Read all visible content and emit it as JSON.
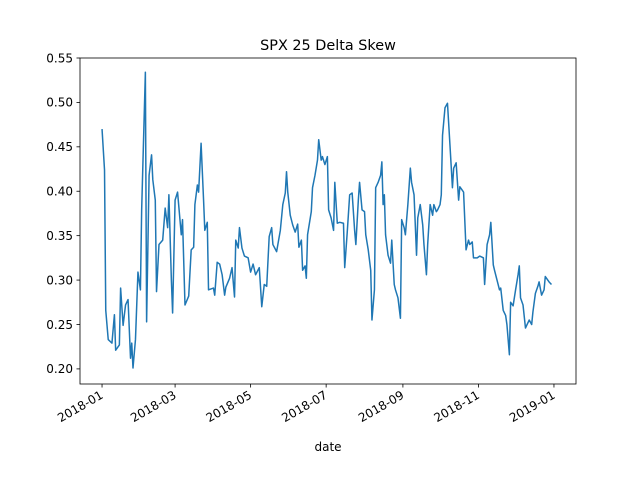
{
  "chart_data": {
    "type": "line",
    "title": "SPX 25 Delta Skew",
    "x_label": "date",
    "x": [
      0,
      2,
      3,
      5,
      8,
      10,
      11,
      14,
      15,
      17,
      19,
      21,
      23,
      24,
      25,
      27,
      29,
      31,
      32,
      35,
      36,
      38,
      40,
      41,
      43,
      44,
      46,
      49,
      51,
      53,
      54,
      56,
      57,
      59,
      61,
      64,
      65,
      67,
      70,
      72,
      74,
      75,
      77,
      78,
      80,
      82,
      83,
      85,
      86,
      90,
      91,
      93,
      95,
      97,
      99,
      100,
      103,
      105,
      107,
      108,
      110,
      111,
      113,
      115,
      118,
      120,
      122,
      124,
      127,
      129,
      131,
      133,
      135,
      137,
      138,
      141,
      142,
      144,
      146,
      148,
      149,
      150,
      152,
      154,
      156,
      158,
      159,
      161,
      162,
      164,
      165,
      166,
      169,
      170,
      172,
      174,
      175,
      177,
      178,
      180,
      182,
      183,
      185,
      187,
      188,
      190,
      192,
      195,
      196,
      198,
      200,
      202,
      204,
      205,
      207,
      208,
      210,
      212,
      213,
      215,
      217,
      218,
      220,
      221,
      223,
      225,
      226,
      227,
      228,
      229,
      231,
      233,
      234,
      236,
      237,
      239,
      241,
      242,
      244,
      245,
      247,
      249,
      250,
      252,
      254,
      255,
      257,
      259,
      260,
      262,
      263,
      265,
      267,
      268,
      270,
      271,
      273,
      274,
      275,
      277,
      279,
      281,
      283,
      284,
      286,
      288,
      289,
      291,
      292,
      294,
      296,
      297,
      299,
      300,
      303,
      305,
      308,
      309,
      311,
      313,
      314,
      316,
      317,
      319,
      321,
      322,
      324,
      326,
      327,
      329,
      330,
      332,
      334,
      336,
      337,
      338,
      340,
      342,
      343,
      345,
      347,
      348,
      350,
      352,
      353,
      355,
      357,
      358,
      360,
      361,
      363
    ],
    "values": [
      0.47,
      0.424,
      0.266,
      0.233,
      0.229,
      0.261,
      0.221,
      0.227,
      0.291,
      0.249,
      0.272,
      0.278,
      0.212,
      0.229,
      0.201,
      0.233,
      0.309,
      0.289,
      0.379,
      0.534,
      0.253,
      0.418,
      0.441,
      0.413,
      0.39,
      0.287,
      0.34,
      0.345,
      0.381,
      0.359,
      0.396,
      0.3,
      0.263,
      0.39,
      0.399,
      0.351,
      0.368,
      0.272,
      0.282,
      0.334,
      0.337,
      0.385,
      0.407,
      0.399,
      0.454,
      0.39,
      0.356,
      0.365,
      0.289,
      0.291,
      0.283,
      0.32,
      0.318,
      0.306,
      0.283,
      0.292,
      0.302,
      0.314,
      0.281,
      0.345,
      0.336,
      0.359,
      0.336,
      0.327,
      0.325,
      0.309,
      0.318,
      0.306,
      0.314,
      0.27,
      0.295,
      0.293,
      0.349,
      0.359,
      0.34,
      0.332,
      0.34,
      0.356,
      0.385,
      0.398,
      0.422,
      0.399,
      0.373,
      0.362,
      0.354,
      0.363,
      0.337,
      0.345,
      0.311,
      0.316,
      0.302,
      0.351,
      0.377,
      0.404,
      0.418,
      0.435,
      0.458,
      0.435,
      0.439,
      0.43,
      0.439,
      0.379,
      0.37,
      0.356,
      0.41,
      0.364,
      0.365,
      0.364,
      0.314,
      0.353,
      0.396,
      0.398,
      0.356,
      0.34,
      0.39,
      0.41,
      0.379,
      0.377,
      0.351,
      0.334,
      0.311,
      0.255,
      0.289,
      0.404,
      0.41,
      0.418,
      0.433,
      0.385,
      0.396,
      0.351,
      0.328,
      0.319,
      0.345,
      0.295,
      0.289,
      0.28,
      0.257,
      0.368,
      0.359,
      0.351,
      0.385,
      0.426,
      0.41,
      0.396,
      0.328,
      0.37,
      0.385,
      0.362,
      0.34,
      0.306,
      0.34,
      0.385,
      0.373,
      0.385,
      0.377,
      0.379,
      0.385,
      0.396,
      0.463,
      0.494,
      0.499,
      0.452,
      0.404,
      0.426,
      0.432,
      0.39,
      0.405,
      0.401,
      0.399,
      0.334,
      0.345,
      0.34,
      0.343,
      0.325,
      0.325,
      0.327,
      0.325,
      0.295,
      0.34,
      0.351,
      0.365,
      0.317,
      0.311,
      0.3,
      0.289,
      0.291,
      0.266,
      0.26,
      0.25,
      0.216,
      0.275,
      0.271,
      0.289,
      0.306,
      0.316,
      0.28,
      0.272,
      0.246,
      0.249,
      0.255,
      0.25,
      0.264,
      0.285,
      0.293,
      0.298,
      0.283,
      0.289,
      0.304,
      0.3,
      0.298,
      0.295
    ],
    "color": "#1f77b4",
    "xlim": [
      -17.8,
      382.8
    ],
    "xticks": [
      {
        "value": 0,
        "label": "2018-01"
      },
      {
        "value": 59,
        "label": "2018-03"
      },
      {
        "value": 120,
        "label": "2018-05"
      },
      {
        "value": 181,
        "label": "2018-07"
      },
      {
        "value": 243,
        "label": "2018-09"
      },
      {
        "value": 304,
        "label": "2018-11"
      },
      {
        "value": 365,
        "label": "2019-01"
      }
    ],
    "ylim": [
      0.183,
      0.55
    ],
    "yticks": [
      {
        "value": 0.2,
        "label": "0.20"
      },
      0.25,
      {
        "value": 0.3,
        "label": "0.30"
      },
      0.35,
      {
        "value": 0.4,
        "label": "0.40"
      },
      0.45,
      {
        "value": 0.5,
        "label": "0.50"
      },
      0.55
    ],
    "grid": false
  }
}
